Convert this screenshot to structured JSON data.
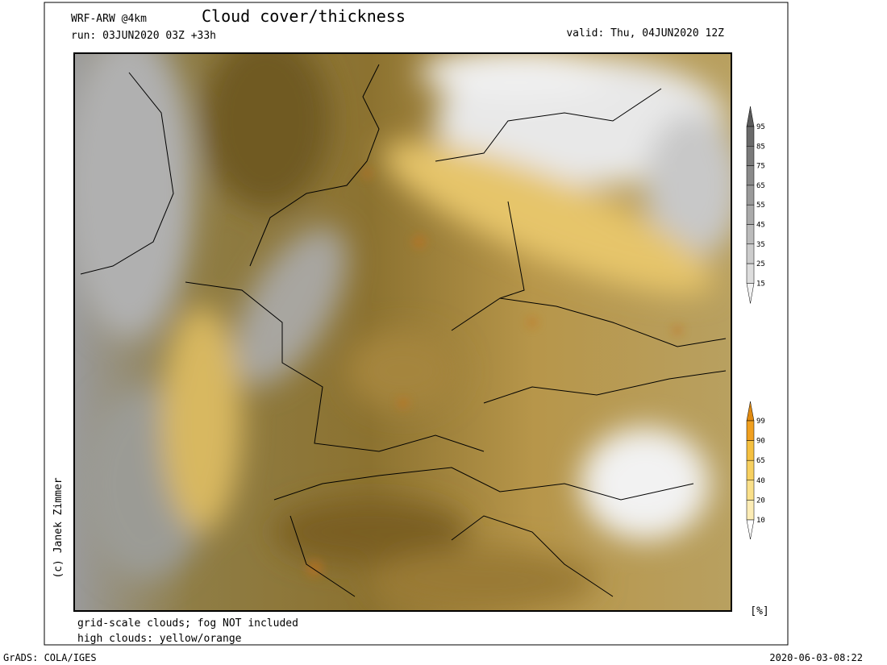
{
  "header": {
    "model": "WRF-ARW @4km",
    "title": "Cloud cover/thickness",
    "run": "run: 03JUN2020 03Z +33h",
    "valid": "valid: Thu, 04JUN2020 12Z"
  },
  "notes": [
    "grid-scale clouds; fog NOT included",
    "high clouds: yellow/orange"
  ],
  "credit": "(c) Janek Zimmer",
  "legend_low": {
    "ticks": [
      95,
      85,
      75,
      65,
      55,
      45,
      35,
      25,
      15
    ]
  },
  "legend_high": {
    "ticks": [
      99,
      90,
      65,
      40,
      20,
      10
    ]
  },
  "unit": "[%]",
  "footer": {
    "left": "GrADS: COLA/IGES",
    "right": "2020-06-03-08:22"
  }
}
